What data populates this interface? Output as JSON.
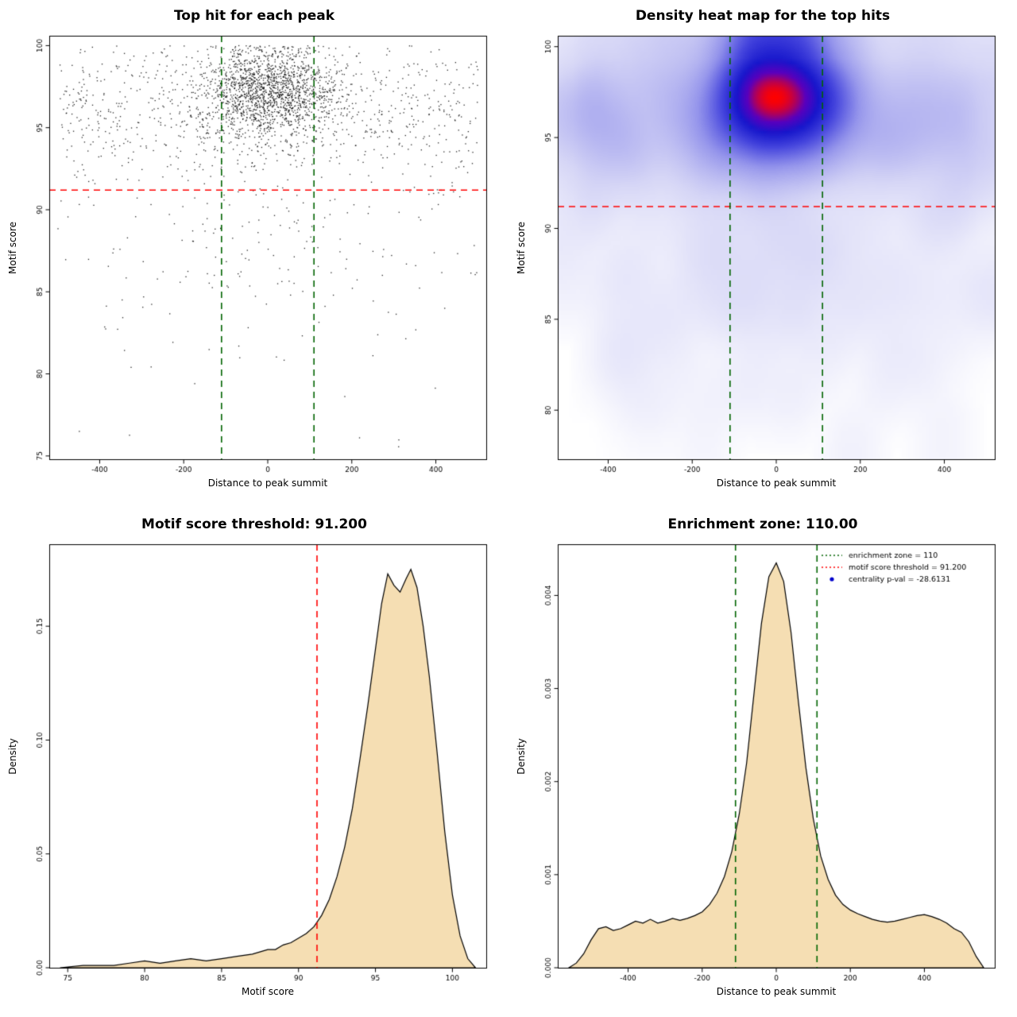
{
  "colors": {
    "background": "#ffffff",
    "point_color": "#000000",
    "threshold_red": "#ff0000",
    "zone_green": "#006400",
    "density_fill": "#f5deb3",
    "density_stroke": "#000000",
    "legend_point_blue": "#0000cc",
    "heat_stops": [
      [
        0,
        255,
        255,
        255
      ],
      [
        0.22,
        214,
        214,
        246
      ],
      [
        0.45,
        150,
        150,
        236
      ],
      [
        0.65,
        70,
        70,
        222
      ],
      [
        0.8,
        22,
        22,
        204
      ],
      [
        0.9,
        90,
        0,
        190
      ],
      [
        1,
        255,
        0,
        0
      ]
    ]
  },
  "chart_data": [
    {
      "type": "scatter",
      "title": "Top hit for each peak",
      "xlabel": "Distance to peak summit",
      "ylabel": "Motif score",
      "xlim": [
        -520,
        520
      ],
      "ylim": [
        74.8,
        100.6
      ],
      "xticks": [
        -400,
        -200,
        0,
        200,
        400
      ],
      "yticks": [
        75,
        80,
        85,
        90,
        95,
        100
      ],
      "hlines": [
        {
          "y": 91.2,
          "color": "#ff0000",
          "dash": "dashed"
        }
      ],
      "vlines": [
        {
          "x": -110,
          "color": "#006400",
          "dash": "dashed"
        },
        {
          "x": 110,
          "color": "#006400",
          "dash": "dashed"
        }
      ],
      "points_spec": {
        "seed": 42,
        "clip": {
          "x": [
            -500,
            500
          ],
          "y": [
            75.3,
            100
          ]
        },
        "clusters": [
          {
            "n": 1600,
            "x_dist": "normal",
            "x_mean": 0,
            "x_sd": 80,
            "y_dist": "normal",
            "y_mean": 97.2,
            "y_sd": 1.4
          },
          {
            "n": 900,
            "x_dist": "uniform",
            "x_min": -500,
            "x_max": 500,
            "y_dist": "normal",
            "y_mean": 95.8,
            "y_sd": 2.1
          },
          {
            "n": 90,
            "x_dist": "uniform",
            "x_min": -500,
            "x_max": 500,
            "y_dist": "uniform",
            "y_min": 85,
            "y_max": 91.5
          },
          {
            "n": 50,
            "x_dist": "normal",
            "x_mean": 0,
            "x_sd": 140,
            "y_dist": "uniform",
            "y_min": 84,
            "y_max": 91.3
          },
          {
            "n": 30,
            "x_dist": "uniform",
            "x_min": -480,
            "x_max": 480,
            "y_dist": "uniform",
            "y_min": 80,
            "y_max": 85
          },
          {
            "n": 8,
            "x_dist": "uniform",
            "x_min": -480,
            "x_max": 480,
            "y_dist": "uniform",
            "y_min": 75.5,
            "y_max": 80
          }
        ]
      }
    },
    {
      "type": "density2d",
      "title": "Density heat map for the top hits",
      "xlabel": "Distance to peak summit",
      "ylabel": "Motif score",
      "xlim": [
        -520,
        520
      ],
      "ylim": [
        77.3,
        100.6
      ],
      "xticks": [
        -400,
        -200,
        0,
        200,
        400
      ],
      "yticks": [
        80,
        85,
        90,
        95,
        100
      ],
      "hlines": [
        {
          "y": 91.2,
          "color": "#ff0000",
          "dash": "dashed"
        }
      ],
      "vlines": [
        {
          "x": -110,
          "color": "#006400",
          "dash": "dashed"
        },
        {
          "x": 110,
          "color": "#006400",
          "dash": "dashed"
        }
      ],
      "points_spec": {
        "seed": 42,
        "clip": {
          "x": [
            -500,
            500
          ],
          "y": [
            75.3,
            100
          ]
        },
        "clusters": [
          {
            "n": 1600,
            "x_dist": "normal",
            "x_mean": 0,
            "x_sd": 80,
            "y_dist": "normal",
            "y_mean": 97.2,
            "y_sd": 1.4
          },
          {
            "n": 900,
            "x_dist": "uniform",
            "x_min": -500,
            "x_max": 500,
            "y_dist": "normal",
            "y_mean": 95.8,
            "y_sd": 2.1
          },
          {
            "n": 90,
            "x_dist": "uniform",
            "x_min": -500,
            "x_max": 500,
            "y_dist": "uniform",
            "y_min": 85,
            "y_max": 91.5
          },
          {
            "n": 50,
            "x_dist": "normal",
            "x_mean": 0,
            "x_sd": 140,
            "y_dist": "uniform",
            "y_min": 84,
            "y_max": 91.3
          },
          {
            "n": 30,
            "x_dist": "uniform",
            "x_min": -480,
            "x_max": 480,
            "y_dist": "uniform",
            "y_min": 80,
            "y_max": 85
          },
          {
            "n": 8,
            "x_dist": "uniform",
            "x_min": -480,
            "x_max": 480,
            "y_dist": "uniform",
            "y_min": 75.5,
            "y_max": 80
          }
        ]
      }
    },
    {
      "type": "area",
      "title": "Motif score threshold: 91.200",
      "xlabel": "Motif score",
      "ylabel": "Density",
      "xlim": [
        73.8,
        102.2
      ],
      "ylim": [
        0,
        0.186
      ],
      "xticks": [
        75,
        80,
        85,
        90,
        95,
        100
      ],
      "yticks": [
        0,
        0.05,
        0.1,
        0.15
      ],
      "ytick_labels": [
        "0.00",
        "0.05",
        "0.10",
        "0.15"
      ],
      "vlines": [
        {
          "x": 91.2,
          "color": "#ff0000",
          "dash": "dashed"
        }
      ],
      "curve": {
        "x": [
          74.5,
          76,
          78,
          79,
          80,
          81,
          82,
          83,
          84,
          85,
          86,
          87,
          88,
          88.5,
          89,
          89.5,
          90,
          90.5,
          91,
          91.5,
          92,
          92.5,
          93,
          93.5,
          94,
          94.5,
          95,
          95.4,
          95.8,
          96.2,
          96.6,
          97.0,
          97.3,
          97.7,
          98.1,
          98.5,
          99,
          99.5,
          100,
          100.5,
          101,
          101.5
        ],
        "y": [
          0.0,
          0.001,
          0.001,
          0.002,
          0.003,
          0.002,
          0.003,
          0.004,
          0.003,
          0.004,
          0.005,
          0.006,
          0.008,
          0.008,
          0.01,
          0.011,
          0.013,
          0.015,
          0.018,
          0.023,
          0.03,
          0.04,
          0.053,
          0.07,
          0.092,
          0.115,
          0.14,
          0.16,
          0.173,
          0.168,
          0.165,
          0.171,
          0.175,
          0.167,
          0.15,
          0.128,
          0.095,
          0.06,
          0.032,
          0.014,
          0.004,
          0.0
        ]
      }
    },
    {
      "type": "area",
      "title": "Enrichment zone: 110.00",
      "xlabel": "Distance to peak summit",
      "ylabel": "Density",
      "xlim": [
        -590,
        590
      ],
      "ylim": [
        0,
        0.00455
      ],
      "xticks": [
        -400,
        -200,
        0,
        200,
        400
      ],
      "yticks": [
        0,
        0.001,
        0.002,
        0.003,
        0.004
      ],
      "ytick_labels": [
        "0.000",
        "0.001",
        "0.002",
        "0.003",
        "0.004"
      ],
      "vlines": [
        {
          "x": -110,
          "color": "#006400",
          "dash": "dashed"
        },
        {
          "x": 110,
          "color": "#006400",
          "dash": "dashed"
        }
      ],
      "curve": {
        "x": [
          -560,
          -540,
          -520,
          -500,
          -480,
          -460,
          -440,
          -420,
          -400,
          -380,
          -360,
          -340,
          -320,
          -300,
          -280,
          -260,
          -240,
          -220,
          -200,
          -180,
          -160,
          -140,
          -120,
          -100,
          -80,
          -60,
          -40,
          -20,
          0,
          20,
          40,
          60,
          80,
          100,
          120,
          140,
          160,
          180,
          200,
          220,
          240,
          260,
          280,
          300,
          320,
          340,
          360,
          380,
          400,
          420,
          440,
          460,
          480,
          500,
          520,
          540,
          560
        ],
        "y": [
          0.0,
          5e-05,
          0.00015,
          0.0003,
          0.00042,
          0.00044,
          0.0004,
          0.00042,
          0.00046,
          0.0005,
          0.00048,
          0.00052,
          0.00048,
          0.0005,
          0.00053,
          0.00051,
          0.00053,
          0.00056,
          0.0006,
          0.00068,
          0.0008,
          0.00098,
          0.00125,
          0.00165,
          0.0022,
          0.00295,
          0.0037,
          0.0042,
          0.00435,
          0.00415,
          0.0036,
          0.00285,
          0.00215,
          0.0016,
          0.0012,
          0.00095,
          0.00078,
          0.00068,
          0.00062,
          0.00058,
          0.00055,
          0.00052,
          0.0005,
          0.00049,
          0.0005,
          0.00052,
          0.00054,
          0.00056,
          0.00057,
          0.00055,
          0.00052,
          0.00048,
          0.00042,
          0.00038,
          0.00028,
          0.00012,
          0.0
        ]
      },
      "legend": {
        "items": [
          {
            "label": "enrichment zone = 110",
            "type": "line",
            "color": "#006400",
            "dash": "dotted"
          },
          {
            "label": "motif score threshold = 91.200",
            "type": "line",
            "color": "#ff0000",
            "dash": "dotted"
          },
          {
            "label": "centrality p-val = -28.6131",
            "type": "point",
            "color": "#0000cc"
          }
        ]
      }
    }
  ]
}
